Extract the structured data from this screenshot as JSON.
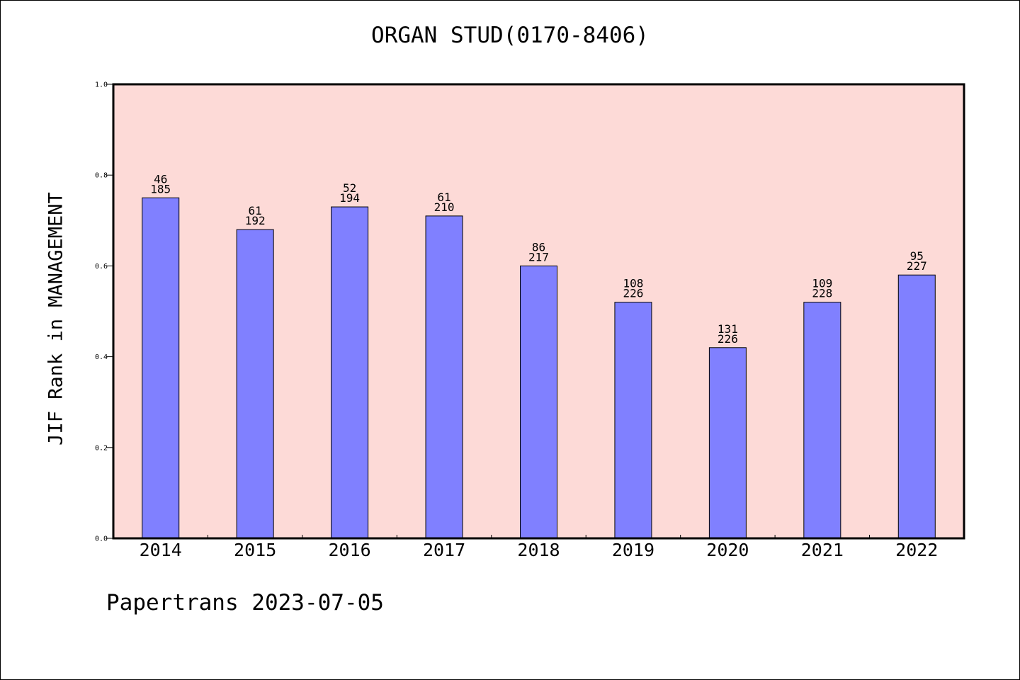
{
  "chart_data": {
    "type": "bar",
    "title": "ORGAN STUD(0170-8406)",
    "xlabel": "",
    "ylabel": "JIF Rank in MANAGEMENT",
    "ylim": [
      0,
      1.0
    ],
    "yticks": [
      "0.0",
      "0.2",
      "0.4",
      "0.6",
      "0.8",
      "1.0"
    ],
    "categories": [
      "2014",
      "2015",
      "2016",
      "2017",
      "2018",
      "2019",
      "2020",
      "2021",
      "2022"
    ],
    "values": [
      0.75,
      0.68,
      0.73,
      0.71,
      0.6,
      0.52,
      0.42,
      0.52,
      0.58
    ],
    "rank": [
      "46",
      "61",
      "52",
      "61",
      "86",
      "108",
      "131",
      "109",
      "95"
    ],
    "total": [
      "185",
      "192",
      "194",
      "210",
      "217",
      "226",
      "226",
      "228",
      "227"
    ],
    "grid": false,
    "plot_background": "#fddad7",
    "bar_color": "#8080ff"
  },
  "footer": {
    "watermark": "Papertrans 2023-07-05"
  }
}
